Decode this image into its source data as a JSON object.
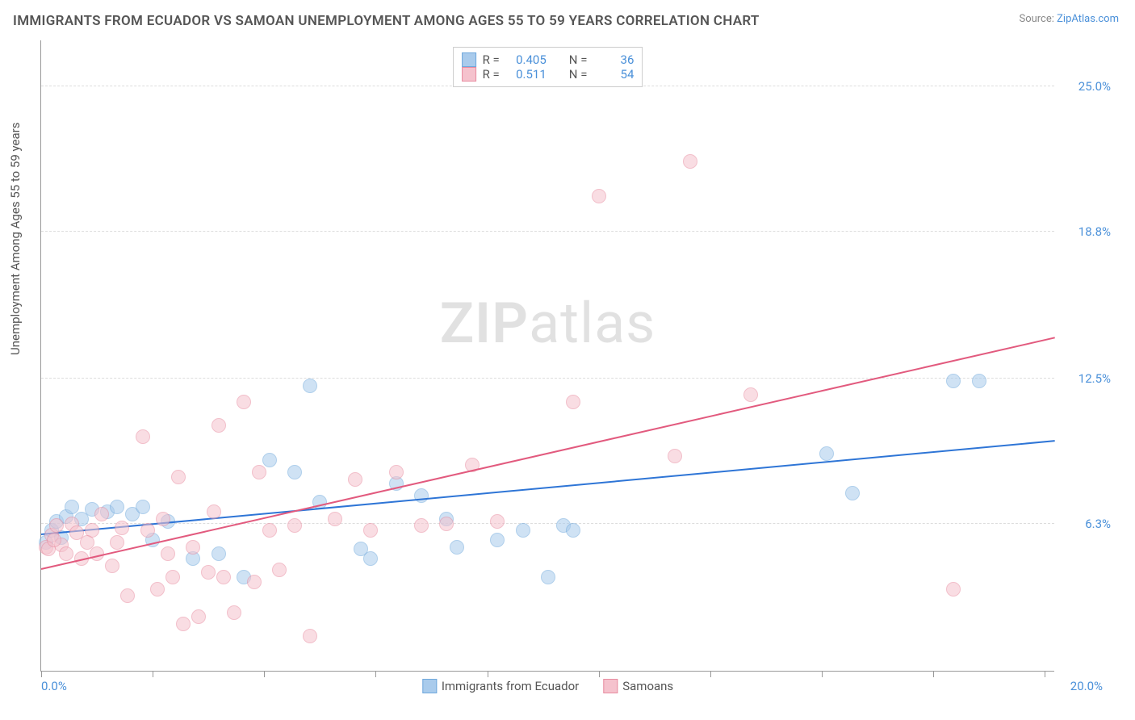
{
  "title": "IMMIGRANTS FROM ECUADOR VS SAMOAN UNEMPLOYMENT AMONG AGES 55 TO 59 YEARS CORRELATION CHART",
  "source_prefix": "Source: ",
  "source_name": "ZipAtlas.com",
  "ylabel": "Unemployment Among Ages 55 to 59 years",
  "watermark_a": "ZIP",
  "watermark_b": "atlas",
  "chart": {
    "type": "scatter",
    "background_color": "#ffffff",
    "grid_color": "#dddddd",
    "axis_color": "#999999",
    "label_color": "#4a90d9",
    "text_color": "#555555",
    "title_fontsize": 17,
    "label_fontsize": 15,
    "tick_fontsize": 15,
    "xlim": [
      0,
      20
    ],
    "ylim": [
      0,
      27
    ],
    "ytick_labels": [
      "6.3%",
      "12.5%",
      "18.8%",
      "25.0%"
    ],
    "ytick_values": [
      6.3,
      12.5,
      18.8,
      25.0
    ],
    "xtick_label_left": "0.0%",
    "xtick_label_right": "20.0%",
    "xtick_positions": [
      0,
      2.2,
      4.4,
      6.6,
      8.8,
      11.0,
      13.2,
      15.4,
      17.6,
      19.8
    ],
    "point_radius": 9,
    "point_opacity": 0.55,
    "line_width": 2
  },
  "series": [
    {
      "name": "Immigrants from Ecuador",
      "color_fill": "#a9cbec",
      "color_stroke": "#6fa8dc",
      "line_color": "#2e75d6",
      "R_label": "R =",
      "R": "0.405",
      "N_label": "N =",
      "N": "36",
      "regression": {
        "x1": 0,
        "y1": 5.8,
        "x2": 20,
        "y2": 9.8
      },
      "points": [
        [
          0.1,
          5.5
        ],
        [
          0.2,
          6.0
        ],
        [
          0.3,
          6.4
        ],
        [
          0.4,
          5.7
        ],
        [
          0.5,
          6.6
        ],
        [
          0.6,
          7.0
        ],
        [
          0.8,
          6.5
        ],
        [
          1.0,
          6.9
        ],
        [
          1.3,
          6.8
        ],
        [
          1.5,
          7.0
        ],
        [
          1.8,
          6.7
        ],
        [
          2.0,
          7.0
        ],
        [
          2.2,
          5.6
        ],
        [
          2.5,
          6.4
        ],
        [
          3.0,
          4.8
        ],
        [
          3.5,
          5.0
        ],
        [
          4.0,
          4.0
        ],
        [
          4.5,
          9.0
        ],
        [
          5.0,
          8.5
        ],
        [
          5.3,
          12.2
        ],
        [
          5.5,
          7.2
        ],
        [
          6.3,
          5.2
        ],
        [
          6.5,
          4.8
        ],
        [
          7.0,
          8.0
        ],
        [
          7.5,
          7.5
        ],
        [
          8.0,
          6.5
        ],
        [
          8.2,
          5.3
        ],
        [
          9.0,
          5.6
        ],
        [
          9.5,
          6.0
        ],
        [
          10.0,
          4.0
        ],
        [
          10.3,
          6.2
        ],
        [
          10.5,
          6.0
        ],
        [
          15.5,
          9.3
        ],
        [
          16.0,
          7.6
        ],
        [
          18.0,
          12.4
        ],
        [
          18.5,
          12.4
        ]
      ]
    },
    {
      "name": "Samoans",
      "color_fill": "#f5c2cd",
      "color_stroke": "#e88ca0",
      "line_color": "#e25a7e",
      "R_label": "R =",
      "R": "0.511",
      "N_label": "N =",
      "N": "54",
      "regression": {
        "x1": 0,
        "y1": 4.3,
        "x2": 20,
        "y2": 14.2
      },
      "points": [
        [
          0.1,
          5.3
        ],
        [
          0.2,
          5.8
        ],
        [
          0.3,
          6.2
        ],
        [
          0.4,
          5.4
        ],
        [
          0.5,
          5.0
        ],
        [
          0.6,
          6.3
        ],
        [
          0.7,
          5.9
        ],
        [
          0.8,
          4.8
        ],
        [
          1.0,
          6.0
        ],
        [
          1.1,
          5.0
        ],
        [
          1.2,
          6.7
        ],
        [
          1.4,
          4.5
        ],
        [
          1.5,
          5.5
        ],
        [
          1.7,
          3.2
        ],
        [
          2.0,
          10.0
        ],
        [
          2.1,
          6.0
        ],
        [
          2.3,
          3.5
        ],
        [
          2.5,
          5.0
        ],
        [
          2.6,
          4.0
        ],
        [
          2.7,
          8.3
        ],
        [
          2.8,
          2.0
        ],
        [
          3.0,
          5.3
        ],
        [
          3.1,
          2.3
        ],
        [
          3.3,
          4.2
        ],
        [
          3.5,
          10.5
        ],
        [
          3.6,
          4.0
        ],
        [
          3.8,
          2.5
        ],
        [
          4.0,
          11.5
        ],
        [
          4.2,
          3.8
        ],
        [
          4.3,
          8.5
        ],
        [
          4.5,
          6.0
        ],
        [
          4.7,
          4.3
        ],
        [
          5.0,
          6.2
        ],
        [
          5.3,
          1.5
        ],
        [
          5.8,
          6.5
        ],
        [
          6.2,
          8.2
        ],
        [
          6.5,
          6.0
        ],
        [
          7.0,
          8.5
        ],
        [
          7.5,
          6.2
        ],
        [
          8.0,
          6.3
        ],
        [
          8.5,
          8.8
        ],
        [
          9.0,
          6.4
        ],
        [
          10.5,
          11.5
        ],
        [
          11.0,
          20.3
        ],
        [
          12.5,
          9.2
        ],
        [
          12.8,
          21.8
        ],
        [
          14.0,
          11.8
        ],
        [
          18.0,
          3.5
        ],
        [
          0.15,
          5.2
        ],
        [
          0.25,
          5.6
        ],
        [
          0.9,
          5.5
        ],
        [
          1.6,
          6.1
        ],
        [
          2.4,
          6.5
        ],
        [
          3.4,
          6.8
        ]
      ]
    }
  ],
  "legend_bottom": [
    {
      "label": "Immigrants from Ecuador",
      "fill": "#a9cbec",
      "stroke": "#6fa8dc"
    },
    {
      "label": "Samoans",
      "fill": "#f5c2cd",
      "stroke": "#e88ca0"
    }
  ]
}
